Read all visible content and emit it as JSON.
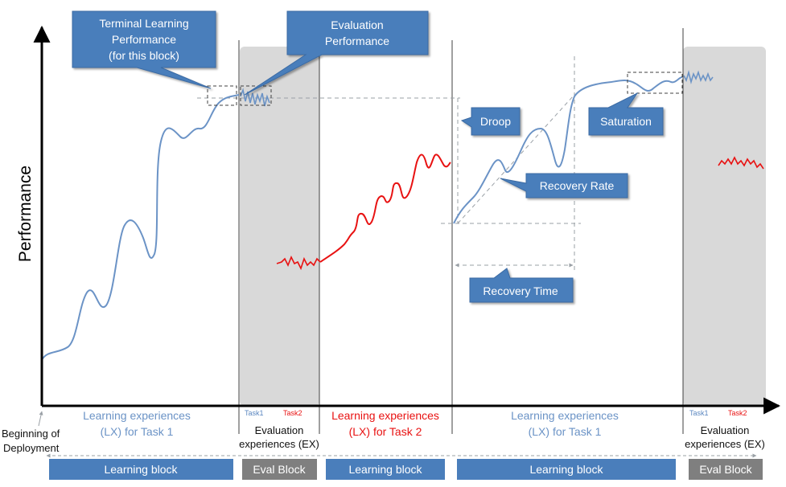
{
  "axis": {
    "ylabel": "Performance"
  },
  "callouts": {
    "terminal_line1": "Terminal Learning",
    "terminal_line2": "Performance",
    "terminal_line3": "(for this block)",
    "evaluation_line1": "Evaluation",
    "evaluation_line2": "Performance",
    "droop": "Droop",
    "saturation": "Saturation",
    "recovery_rate": "Recovery Rate",
    "recovery_time": "Recovery Time"
  },
  "bottom_labels": {
    "beginning_line1": "Beginning of",
    "beginning_line2": "Deployment",
    "lx1_line1": "Learning experiences",
    "lx1_line2": "(LX)  for Task 1",
    "eval1_task1": "Task1",
    "eval1_task2": "Task2",
    "eval1_line1": "Evaluation",
    "eval1_line2": "experiences (EX)",
    "lx2_line1": "Learning experiences",
    "lx2_line2": "(LX)  for Task 2",
    "lx3_line1": "Learning experiences",
    "lx3_line2": "(LX)  for Task 1",
    "eval2_task1": "Task1",
    "eval2_task2": "Task2",
    "eval2_line1": "Evaluation",
    "eval2_line2": "experiences (EX)"
  },
  "blocks": [
    {
      "label": "Learning block",
      "kind": "learning"
    },
    {
      "label": "Eval Block",
      "kind": "eval"
    },
    {
      "label": "Learning block",
      "kind": "learning"
    },
    {
      "label": "Learning block",
      "kind": "learning"
    },
    {
      "label": "Eval Block",
      "kind": "eval"
    }
  ],
  "colors": {
    "task1_curve": "#6b93c6",
    "task2_curve": "#e81212",
    "callout_fill": "#4a7ebb",
    "learning_block": "#4a7ebb",
    "eval_block": "#7f7f7f",
    "eval_region": "#d9d9d9"
  }
}
